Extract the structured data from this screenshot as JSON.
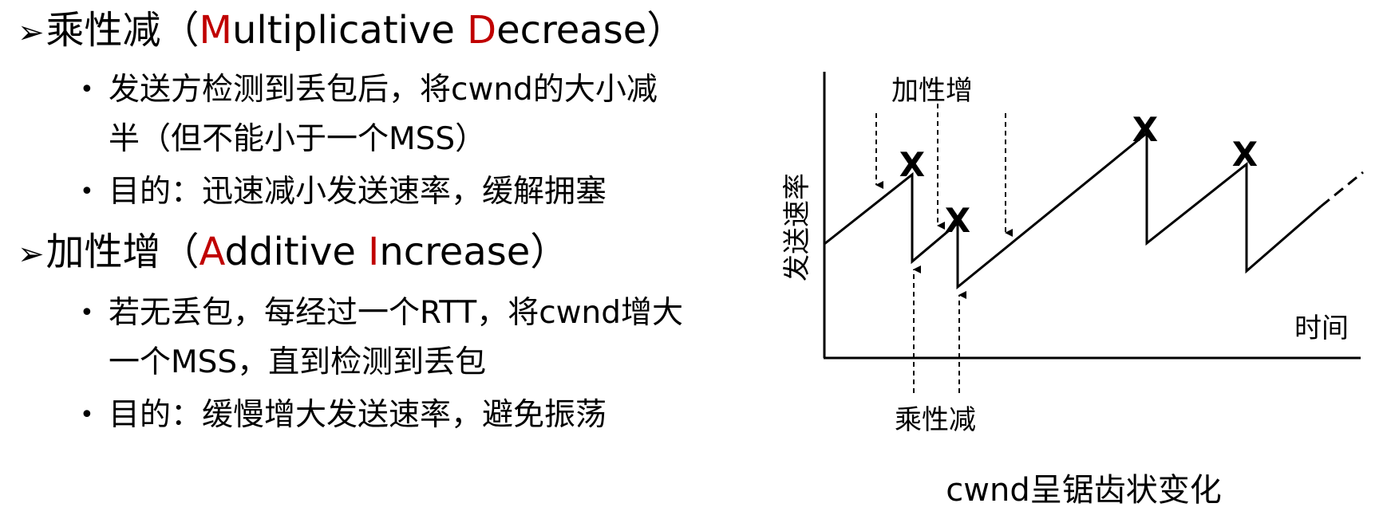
{
  "section1": {
    "title_prefix": "乘性减（",
    "title_m": "M",
    "title_mid": "ultiplicative ",
    "title_d": "D",
    "title_end": "ecrease）",
    "bullets": [
      {
        "line1": "发送方检测到丢包后，将cwnd的大小减",
        "line2": "半（但不能小于一个MSS）"
      },
      {
        "line1": "目的：迅速减小发送速率，缓解拥塞"
      }
    ]
  },
  "section2": {
    "title_prefix": "加性增（",
    "title_a": "A",
    "title_mid": "dditive ",
    "title_i": "I",
    "title_end": "ncrease）",
    "bullets": [
      {
        "line1": "若无丢包，每经过一个RTT，将cwnd增大",
        "line2": "一个MSS，直到检测到丢包"
      },
      {
        "line1": "目的：缓慢增大发送速率，避免振荡"
      }
    ]
  },
  "diagram": {
    "ylabel": "发送速率",
    "xlabel": "时间",
    "additive_label": "加性增",
    "multiplicative_label": "乘性减",
    "loss_mark": "X",
    "caption": "cwnd呈锯齿状变化",
    "accent_color": "#ff0000"
  }
}
